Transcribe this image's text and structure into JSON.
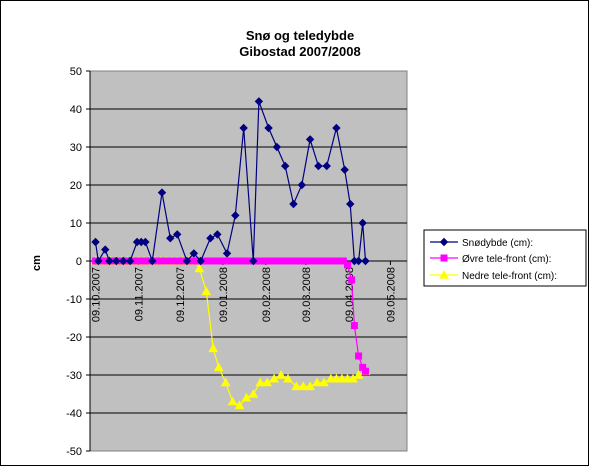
{
  "chart_data": {
    "type": "line",
    "title": "Snø og teledybde",
    "subtitle": "Gibostad 2007/2008",
    "ylabel": "cm",
    "xlabel": "",
    "ylim": [
      -50,
      50
    ],
    "yticks": [
      -50,
      -40,
      -30,
      -20,
      -10,
      0,
      10,
      20,
      30,
      40,
      50
    ],
    "xlim": [
      "2007-10-05",
      "2008-05-21"
    ],
    "x_tick_labels": [
      {
        "date": "2007-10-09",
        "label": "09.10.2007"
      },
      {
        "date": "2007-11-09",
        "label": "09.11.2007"
      },
      {
        "date": "2007-12-09",
        "label": "09.12.2007"
      },
      {
        "date": "2008-01-09",
        "label": "09.01.2008"
      },
      {
        "date": "2008-02-09",
        "label": "09.02.2008"
      },
      {
        "date": "2008-03-09",
        "label": "09.03.2008"
      },
      {
        "date": "2008-04-09",
        "label": "09.04.2008"
      },
      {
        "date": "2008-05-09",
        "label": "09.05.2008"
      }
    ],
    "grid": true,
    "legend_position": "right",
    "colors": {
      "plot_background": "#c0c0c0",
      "gridline": "#000000",
      "axis": "#000000"
    },
    "series": [
      {
        "name": "Snødybde (cm):",
        "color": "#000080",
        "marker": "diamond",
        "points": [
          [
            "2007-10-09",
            5
          ],
          [
            "2007-10-11",
            0
          ],
          [
            "2007-10-16",
            3
          ],
          [
            "2007-10-19",
            0
          ],
          [
            "2007-10-24",
            0
          ],
          [
            "2007-10-29",
            0
          ],
          [
            "2007-11-03",
            0
          ],
          [
            "2007-11-08",
            5
          ],
          [
            "2007-11-11",
            5
          ],
          [
            "2007-11-14",
            5
          ],
          [
            "2007-11-19",
            0
          ],
          [
            "2007-11-26",
            18
          ],
          [
            "2007-12-02",
            6
          ],
          [
            "2007-12-07",
            7
          ],
          [
            "2007-12-14",
            0
          ],
          [
            "2007-12-19",
            2
          ],
          [
            "2007-12-24",
            0
          ],
          [
            "2007-12-31",
            6
          ],
          [
            "2008-01-05",
            7
          ],
          [
            "2008-01-12",
            2
          ],
          [
            "2008-01-18",
            12
          ],
          [
            "2008-01-24",
            35
          ],
          [
            "2008-01-31",
            0
          ],
          [
            "2008-02-04",
            42
          ],
          [
            "2008-02-11",
            35
          ],
          [
            "2008-02-17",
            30
          ],
          [
            "2008-02-23",
            25
          ],
          [
            "2008-02-29",
            15
          ],
          [
            "2008-03-06",
            20
          ],
          [
            "2008-03-12",
            32
          ],
          [
            "2008-03-18",
            25
          ],
          [
            "2008-03-24",
            25
          ],
          [
            "2008-03-31",
            35
          ],
          [
            "2008-04-06",
            24
          ],
          [
            "2008-04-10",
            15
          ],
          [
            "2008-04-13",
            0
          ],
          [
            "2008-04-16",
            0
          ],
          [
            "2008-04-19",
            10
          ],
          [
            "2008-04-21",
            0
          ]
        ]
      },
      {
        "name": "Øvre tele-front (cm):",
        "color": "#ff00ff",
        "marker": "square",
        "points": [
          [
            "2007-10-09",
            0
          ],
          [
            "2007-10-12",
            0
          ],
          [
            "2007-10-16",
            0
          ],
          [
            "2007-10-20",
            0
          ],
          [
            "2007-10-24",
            0
          ],
          [
            "2007-10-28",
            0
          ],
          [
            "2007-11-01",
            0
          ],
          [
            "2007-11-05",
            0
          ],
          [
            "2007-11-09",
            0
          ],
          [
            "2007-11-13",
            0
          ],
          [
            "2007-11-17",
            0
          ],
          [
            "2007-11-21",
            0
          ],
          [
            "2007-11-25",
            0
          ],
          [
            "2007-11-29",
            0
          ],
          [
            "2007-12-03",
            0
          ],
          [
            "2007-12-07",
            0
          ],
          [
            "2007-12-11",
            0
          ],
          [
            "2007-12-15",
            0
          ],
          [
            "2007-12-19",
            0
          ],
          [
            "2007-12-23",
            0
          ],
          [
            "2007-12-27",
            0
          ],
          [
            "2007-12-31",
            0
          ],
          [
            "2008-01-04",
            0
          ],
          [
            "2008-01-08",
            0
          ],
          [
            "2008-01-12",
            0
          ],
          [
            "2008-01-16",
            0
          ],
          [
            "2008-01-20",
            0
          ],
          [
            "2008-01-24",
            0
          ],
          [
            "2008-01-28",
            0
          ],
          [
            "2008-02-01",
            0
          ],
          [
            "2008-02-05",
            0
          ],
          [
            "2008-02-09",
            0
          ],
          [
            "2008-02-13",
            0
          ],
          [
            "2008-02-17",
            0
          ],
          [
            "2008-02-21",
            0
          ],
          [
            "2008-02-25",
            0
          ],
          [
            "2008-02-29",
            0
          ],
          [
            "2008-03-04",
            0
          ],
          [
            "2008-03-08",
            0
          ],
          [
            "2008-03-12",
            0
          ],
          [
            "2008-03-16",
            0
          ],
          [
            "2008-03-20",
            0
          ],
          [
            "2008-03-24",
            0
          ],
          [
            "2008-03-28",
            0
          ],
          [
            "2008-04-01",
            0
          ],
          [
            "2008-04-05",
            0
          ],
          [
            "2008-04-08",
            -1
          ],
          [
            "2008-04-11",
            -5
          ],
          [
            "2008-04-13",
            -17
          ],
          [
            "2008-04-16",
            -25
          ],
          [
            "2008-04-19",
            -28
          ],
          [
            "2008-04-21",
            -29
          ]
        ]
      },
      {
        "name": "Nedre tele-front (cm):",
        "color": "#ffff00",
        "marker": "triangle",
        "points": [
          [
            "2007-10-09",
            0
          ],
          [
            "2007-10-12",
            0
          ],
          [
            "2007-10-16",
            0
          ],
          [
            "2007-10-20",
            0
          ],
          [
            "2007-10-24",
            0
          ],
          [
            "2007-10-28",
            0
          ],
          [
            "2007-11-01",
            0
          ],
          [
            "2007-11-05",
            0
          ],
          [
            "2007-11-09",
            0
          ],
          [
            "2007-11-13",
            0
          ],
          [
            "2007-11-17",
            0
          ],
          [
            "2007-11-21",
            0
          ],
          [
            "2007-11-25",
            0
          ],
          [
            "2007-11-29",
            0
          ],
          [
            "2007-12-03",
            0
          ],
          [
            "2007-12-07",
            0
          ],
          [
            "2007-12-11",
            0
          ],
          [
            "2007-12-15",
            0
          ],
          [
            "2007-12-19",
            0
          ],
          [
            "2007-12-23",
            -2
          ],
          [
            "2007-12-28",
            -8
          ],
          [
            "2008-01-02",
            -23
          ],
          [
            "2008-01-06",
            -28
          ],
          [
            "2008-01-11",
            -32
          ],
          [
            "2008-01-16",
            -37
          ],
          [
            "2008-01-21",
            -38
          ],
          [
            "2008-01-26",
            -36
          ],
          [
            "2008-01-31",
            -35
          ],
          [
            "2008-02-05",
            -32
          ],
          [
            "2008-02-10",
            -32
          ],
          [
            "2008-02-15",
            -31
          ],
          [
            "2008-02-20",
            -30
          ],
          [
            "2008-02-25",
            -31
          ],
          [
            "2008-03-02",
            -33
          ],
          [
            "2008-03-07",
            -33
          ],
          [
            "2008-03-12",
            -33
          ],
          [
            "2008-03-17",
            -32
          ],
          [
            "2008-03-22",
            -32
          ],
          [
            "2008-03-27",
            -31
          ],
          [
            "2008-03-31",
            -31
          ],
          [
            "2008-04-04",
            -31
          ],
          [
            "2008-04-08",
            -31
          ],
          [
            "2008-04-12",
            -31
          ],
          [
            "2008-04-16",
            -30
          ],
          [
            "2008-04-21",
            -29
          ]
        ]
      }
    ]
  }
}
